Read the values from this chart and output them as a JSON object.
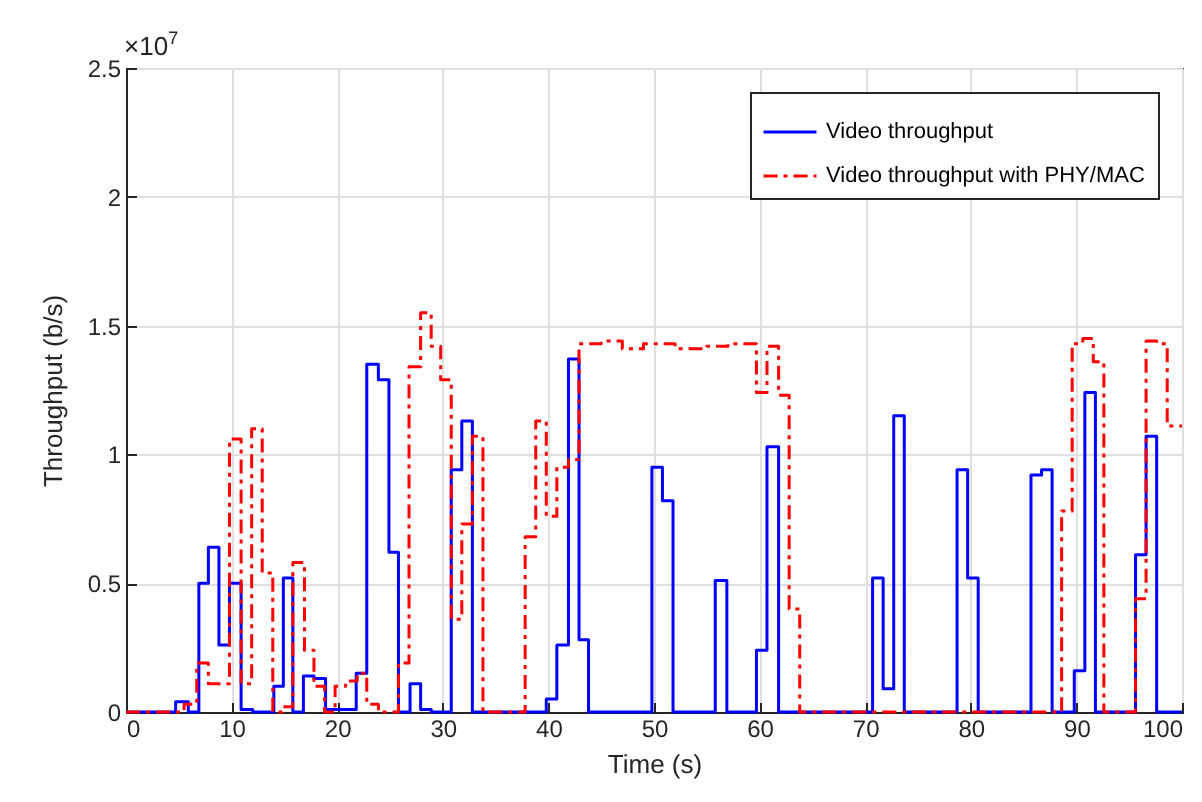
{
  "chart_data": {
    "type": "step",
    "xlabel": "Time (s)",
    "ylabel": "Throughput (b/s)",
    "annotations": [
      "×10$^{7}$"
    ],
    "xlim": [
      0,
      100
    ],
    "xticks": [
      0,
      10,
      20,
      30,
      40,
      50,
      60,
      70,
      80,
      90,
      100
    ],
    "ylim": [
      0,
      2.5
    ],
    "yticks": [
      0,
      0.5,
      1,
      1.5,
      2,
      2.5
    ],
    "grid": true,
    "legend": "top right",
    "marker": "none",
    "series": [
      {
        "name": "Video throughput",
        "color": "#0000ff",
        "line_style": "solid",
        "x": [
          0,
          4.7,
          5.9,
          6.9,
          7.8,
          8.8,
          9.8,
          10.9,
          12,
          14,
          14.9,
          15.8,
          16.8,
          17.8,
          18.9,
          21.8,
          22.8,
          23.9,
          24.9,
          25.8,
          26.9,
          27.9,
          28.9,
          30.8,
          31.8,
          32.8,
          39.8,
          40.8,
          41.9,
          42.9,
          43.8,
          49.8,
          50.8,
          51.8,
          55.8,
          56.9,
          59.7,
          60.7,
          61.8,
          70.7,
          71.7,
          72.7,
          73.7,
          78.7,
          79.7,
          80.7,
          85.7,
          86.7,
          87.7,
          89.8,
          90.8,
          91.8,
          95.6,
          96.6,
          97.6,
          100
        ],
        "values": [
          0,
          0.04,
          0,
          0.5,
          0.64,
          0.26,
          0.5,
          0.01,
          0,
          0.1,
          0.52,
          0,
          0.14,
          0.13,
          0.01,
          0.15,
          1.35,
          1.29,
          0.62,
          0,
          0.11,
          0.01,
          0,
          0.94,
          1.13,
          0,
          0.05,
          0.26,
          1.37,
          0.28,
          0,
          0.95,
          0.82,
          0,
          0.51,
          0,
          0.24,
          1.03,
          0,
          0.52,
          0.09,
          1.15,
          0,
          0.94,
          0.52,
          0,
          0.92,
          0.94,
          0,
          0.16,
          1.24,
          0,
          0.61,
          1.07,
          0,
          0
        ]
      },
      {
        "name": "Video throughput with PHY/MAC",
        "color": "#ff0000",
        "line_style": "dashed",
        "x": [
          0,
          5.5,
          6.7,
          7.8,
          9.8,
          10.9,
          11.9,
          12.9,
          13.9,
          14.8,
          15.8,
          16.9,
          17.8,
          18.8,
          19.8,
          20.8,
          21.9,
          22.8,
          23.9,
          25.8,
          26.8,
          27.9,
          28.9,
          29.8,
          30.8,
          31.8,
          32.8,
          33.8,
          37.8,
          38.8,
          39.8,
          40.8,
          41.9,
          42.9,
          45,
          47,
          49,
          52,
          55,
          57,
          59.7,
          60.7,
          61.8,
          62.8,
          63.8,
          88.6,
          89.6,
          90.6,
          91.6,
          92.6,
          95.6,
          96.6,
          97.6,
          98.6,
          100
        ],
        "values": [
          0,
          0.03,
          0.19,
          0.11,
          1.06,
          0.11,
          1.1,
          0.54,
          0,
          0.02,
          0.58,
          0.24,
          0.1,
          0,
          0.1,
          0.12,
          0.15,
          0.03,
          0,
          0.19,
          1.34,
          1.55,
          1.42,
          1.29,
          0.36,
          0.73,
          1.07,
          0,
          0.68,
          1.13,
          0.76,
          0.95,
          0.98,
          1.43,
          1.44,
          1.41,
          1.43,
          1.41,
          1.42,
          1.43,
          1.24,
          1.42,
          1.23,
          0.4,
          0,
          0.78,
          1.43,
          1.45,
          1.36,
          0,
          0.44,
          1.44,
          1.43,
          1.11,
          1.11
        ]
      }
    ]
  }
}
